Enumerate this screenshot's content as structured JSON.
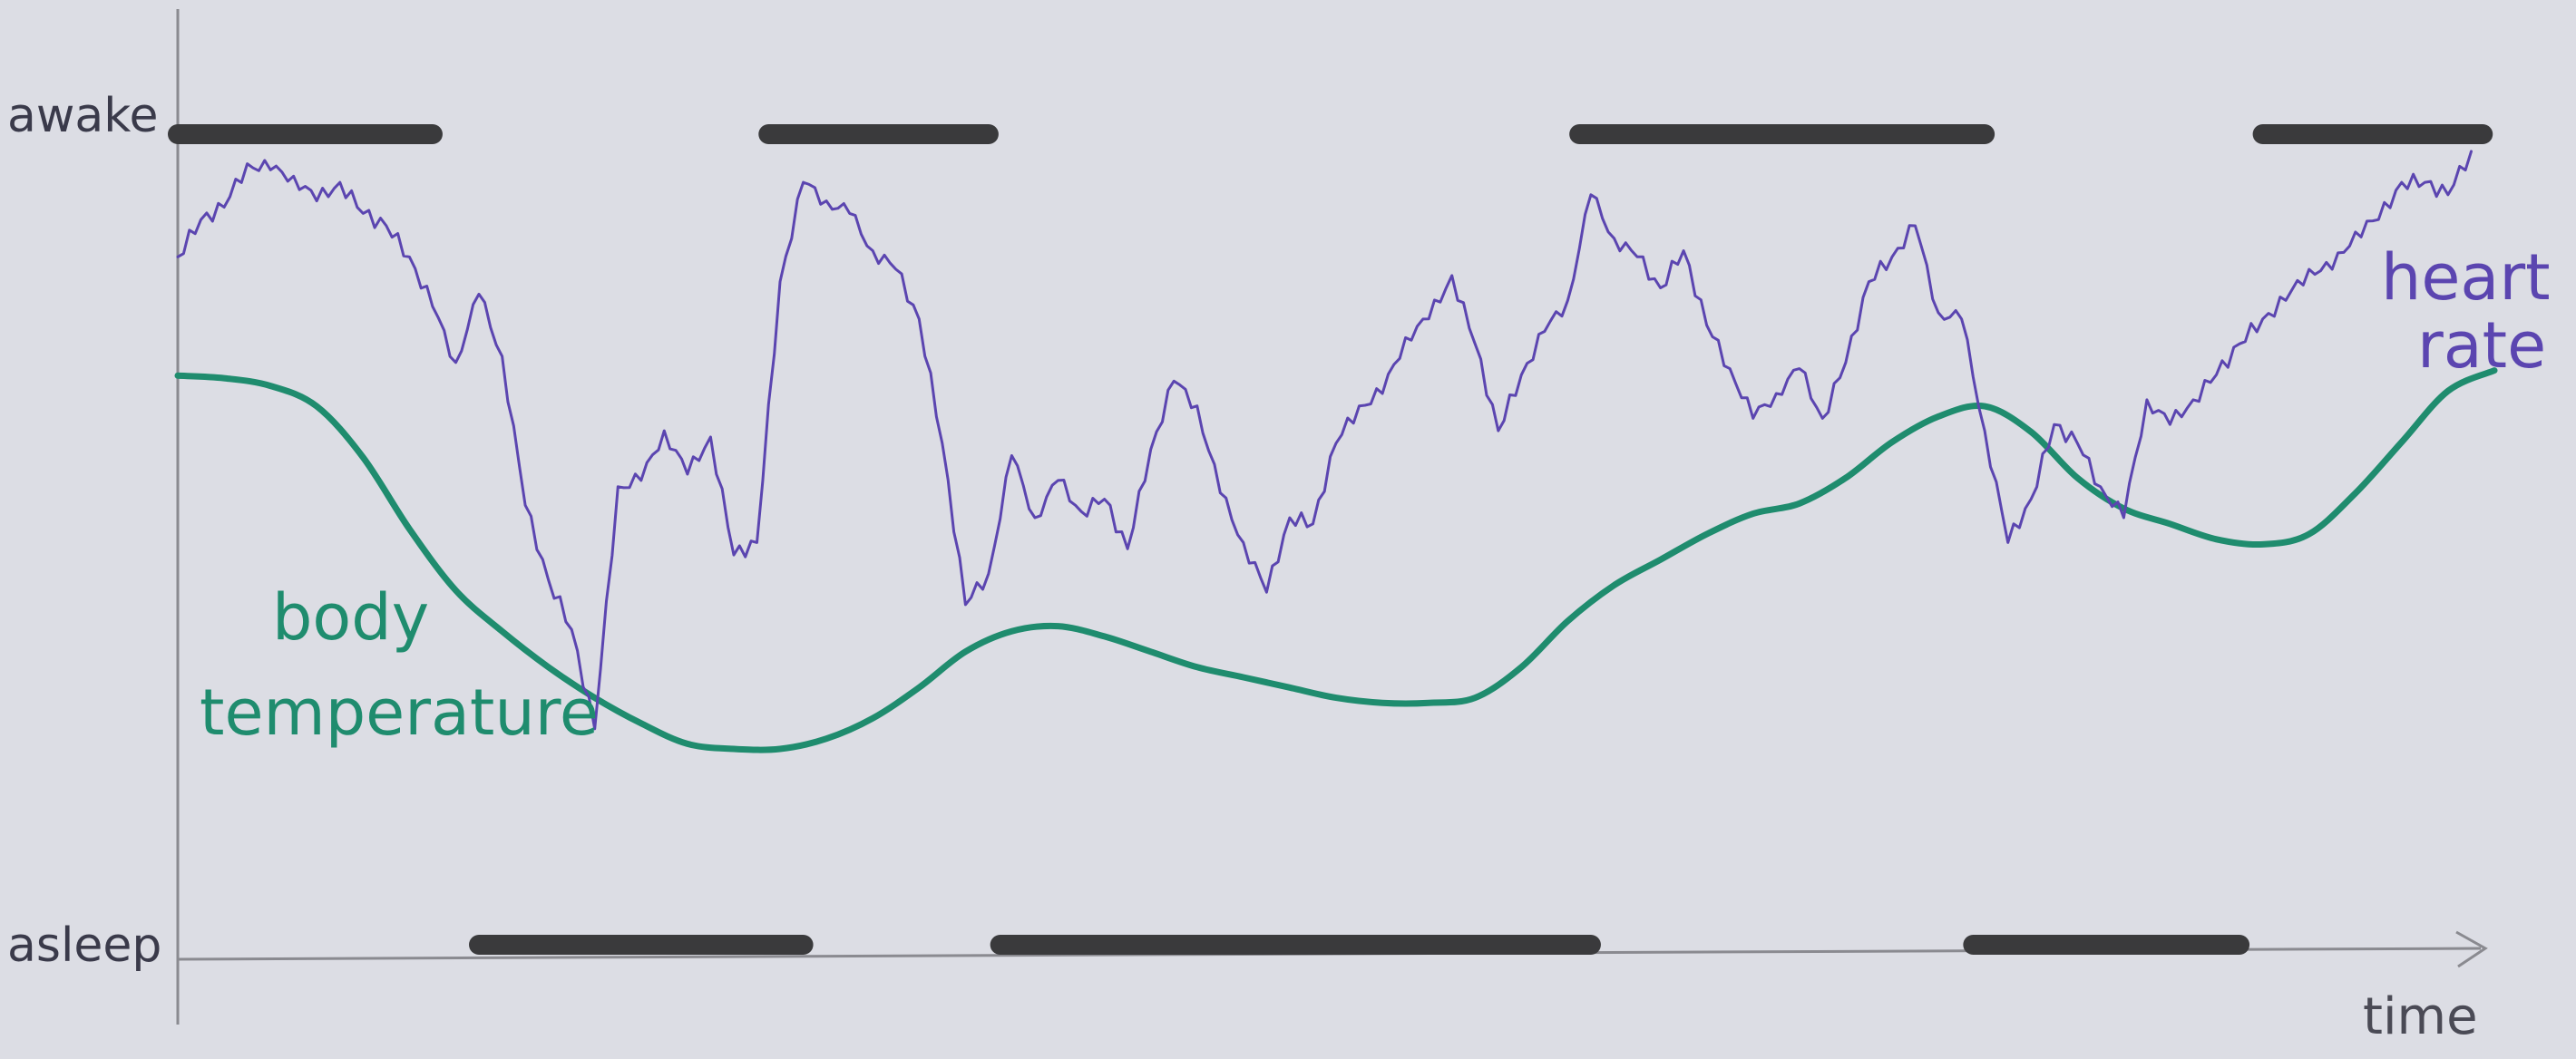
{
  "chart_data": {
    "type": "line",
    "title": "",
    "xlabel": "time",
    "ylabel": "",
    "y_ticks": {
      "top": "awake",
      "bottom": "asleep"
    },
    "x_range": [
      0,
      100
    ],
    "y_range": [
      0,
      100
    ],
    "grid": false,
    "legend": "labels drawn next to each curve",
    "colors": {
      "heart_rate": "#5b45b0",
      "body_temperature": "#1f8c6e",
      "sleep_bars": "#3a3a3c",
      "axes": "#8a8a90",
      "paper": "#dcdde4"
    },
    "awake_periods": [
      [
        0,
        11
      ],
      [
        25.5,
        35
      ],
      [
        60.5,
        78
      ],
      [
        90,
        99.5
      ]
    ],
    "asleep_periods": [
      [
        13,
        27
      ],
      [
        35.5,
        61
      ],
      [
        77.5,
        89
      ]
    ],
    "series": [
      {
        "name": "heart rate",
        "color": "#5b45b0",
        "x": [
          0,
          1,
          2,
          3,
          4,
          5,
          6,
          7,
          8,
          9,
          10,
          11,
          12,
          13,
          14,
          15,
          16,
          17,
          18,
          19,
          20,
          21,
          22,
          23,
          24,
          25,
          26,
          27,
          28,
          29,
          30,
          31,
          32,
          33,
          34,
          35,
          36,
          37,
          38,
          39,
          40,
          41,
          42,
          43,
          44,
          45,
          46,
          47,
          48,
          49,
          50,
          51,
          52,
          53,
          54,
          55,
          56,
          57,
          58,
          59,
          60,
          61,
          62,
          63,
          64,
          65,
          66,
          67,
          68,
          69,
          70,
          71,
          72,
          73,
          74,
          75,
          76,
          77,
          78,
          79,
          80,
          81,
          82,
          83,
          84,
          85,
          86,
          87,
          88,
          89,
          90,
          91,
          92,
          93,
          94,
          95,
          96,
          97,
          98,
          99
        ],
        "y": [
          82,
          88,
          90,
          97,
          96,
          95,
          91,
          94,
          89,
          87,
          82,
          74,
          65,
          76,
          66,
          42,
          30,
          22,
          6,
          45,
          46,
          54,
          47,
          53,
          34,
          36,
          78,
          94,
          91,
          89,
          83,
          80,
          72,
          52,
          26,
          31,
          50,
          40,
          46,
          41,
          43,
          35,
          51,
          62,
          58,
          44,
          36,
          28,
          40,
          39,
          52,
          58,
          60,
          69,
          72,
          79,
          68,
          54,
          63,
          70,
          75,
          92,
          85,
          82,
          77,
          83,
          71,
          64,
          56,
          60,
          64,
          56,
          65,
          78,
          82,
          87,
          73,
          72,
          54,
          36,
          43,
          55,
          52,
          45,
          40,
          59,
          55,
          59,
          63,
          68,
          72,
          75,
          80,
          80,
          86,
          88,
          94,
          94,
          92,
          99
        ]
      },
      {
        "name": "body temperature",
        "color": "#1f8c6e",
        "x": [
          0,
          2,
          4,
          6,
          8,
          10,
          12,
          14,
          16,
          18,
          20,
          22,
          24,
          26,
          28,
          30,
          32,
          34,
          36,
          38,
          40,
          42,
          44,
          46,
          48,
          50,
          52,
          54,
          56,
          58,
          60,
          62,
          64,
          66,
          68,
          70,
          72,
          74,
          76,
          78,
          80,
          82,
          84,
          86,
          88,
          90,
          92,
          94,
          96,
          98,
          100
        ],
        "y": [
          73,
          72.5,
          71,
          67,
          57,
          43,
          31,
          23,
          16,
          10,
          5,
          1,
          0,
          0,
          2,
          6,
          12,
          19,
          23,
          24,
          22,
          19,
          16,
          14,
          12,
          10,
          9,
          9,
          10,
          16,
          25,
          32,
          37,
          42,
          46,
          48,
          53,
          60,
          65,
          67,
          62,
          53,
          47,
          44,
          41,
          40,
          42,
          50,
          60,
          70,
          74
        ]
      }
    ],
    "annotations": [
      {
        "text_line1": "body",
        "text_line2": "temperature",
        "series": "body temperature"
      },
      {
        "text_line1": "heart",
        "text_line2": "rate",
        "series": "heart rate"
      }
    ]
  }
}
